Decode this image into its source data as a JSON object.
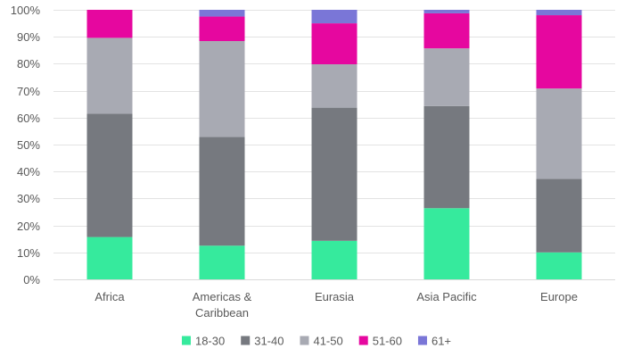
{
  "chart_data": {
    "type": "bar",
    "stacked": true,
    "categories": [
      "Africa",
      "Americas & Caribbean",
      "Eurasia",
      "Asia Pacific",
      "Europe"
    ],
    "category_lines": [
      [
        "Africa"
      ],
      [
        "Americas &",
        "Caribbean"
      ],
      [
        "Eurasia"
      ],
      [
        "Asia Pacific"
      ],
      [
        "Europe"
      ]
    ],
    "series": [
      {
        "name": "18-30",
        "color": "#36EA9D",
        "values": [
          15.7,
          12.5,
          14.3,
          26.4,
          10.0
        ]
      },
      {
        "name": "31-40",
        "color": "#76797F",
        "values": [
          45.8,
          40.3,
          49.4,
          37.9,
          27.3
        ]
      },
      {
        "name": "41-50",
        "color": "#A8AAB3",
        "values": [
          28.1,
          35.6,
          16.1,
          21.4,
          33.5
        ]
      },
      {
        "name": "51-60",
        "color": "#E6079F",
        "values": [
          10.4,
          9.1,
          15.2,
          13.0,
          27.2
        ]
      },
      {
        "name": "61+",
        "color": "#7A76D7",
        "values": [
          0.0,
          2.5,
          5.0,
          1.3,
          2.0
        ]
      }
    ],
    "ylim": [
      0,
      100
    ],
    "yticks": [
      "0%",
      "10%",
      "20%",
      "30%",
      "40%",
      "50%",
      "60%",
      "70%",
      "80%",
      "90%",
      "100%"
    ],
    "grid": true,
    "legend_position": "bottom",
    "title": "",
    "xlabel": "",
    "ylabel": ""
  }
}
